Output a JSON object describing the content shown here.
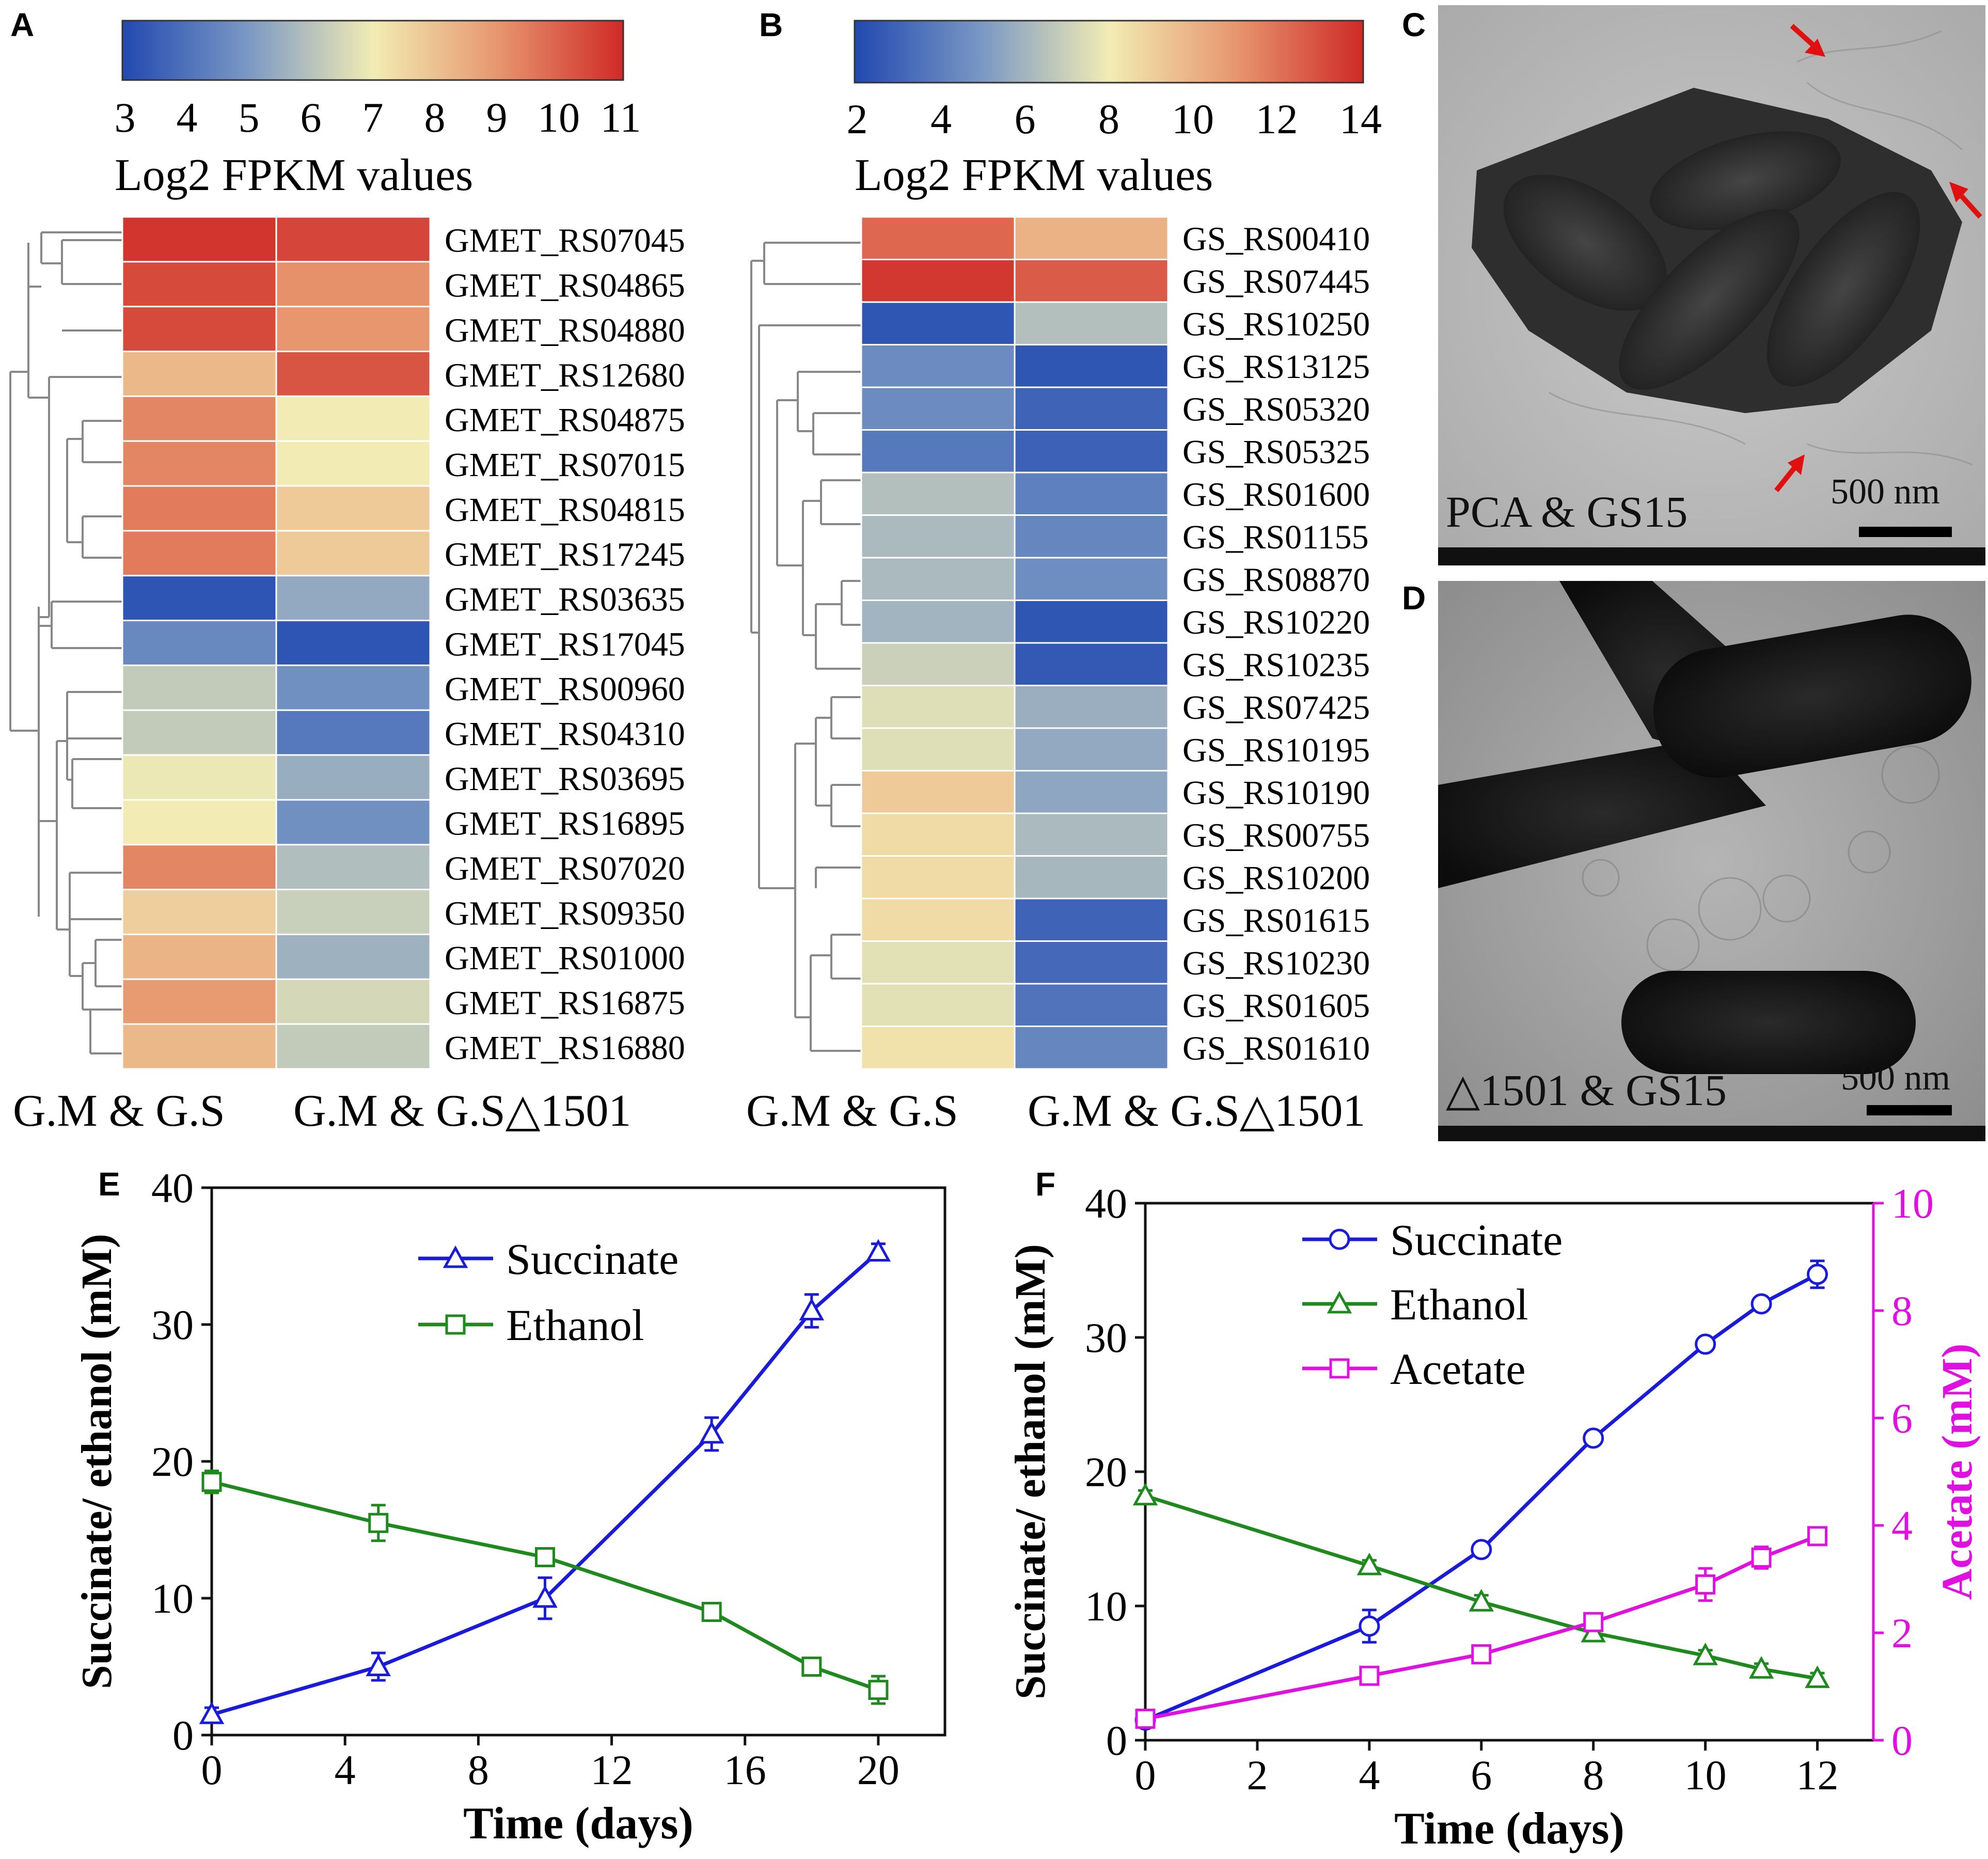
{
  "panel_letters": {
    "a": "A",
    "b": "B",
    "c": "C",
    "d": "D",
    "e": "E",
    "f": "F"
  },
  "panel_A": {
    "colorbar_ticks": [
      "3",
      "4",
      "5",
      "6",
      "7",
      "8",
      "9",
      "10",
      "11"
    ],
    "colorbar_min": 3,
    "colorbar_max": 11,
    "colorbar_label": "Log2  FPKM  values",
    "genes": [
      "GMET_RS07045",
      "GMET_RS04865",
      "GMET_RS04880",
      "GMET_RS12680",
      "GMET_RS04875",
      "GMET_RS07015",
      "GMET_RS04815",
      "GMET_RS17245",
      "GMET_RS03635",
      "GMET_RS17045",
      "GMET_RS00960",
      "GMET_RS04310",
      "GMET_RS03695",
      "GMET_RS16895",
      "GMET_RS07020",
      "GMET_RS09350",
      "GMET_RS01000",
      "GMET_RS16875",
      "GMET_RS16880"
    ],
    "values_col1": [
      10.8,
      10.4,
      10.4,
      8.2,
      9.3,
      9.3,
      9.5,
      9.5,
      3.3,
      4.6,
      6.2,
      6.2,
      6.9,
      7.0,
      9.3,
      7.7,
      8.3,
      8.9,
      8.2
    ],
    "values_col2": [
      10.5,
      9.1,
      9.0,
      10.2,
      7.0,
      7.0,
      7.8,
      7.8,
      5.4,
      3.3,
      4.8,
      4.2,
      5.5,
      4.8,
      5.9,
      6.3,
      5.6,
      6.5,
      6.2
    ],
    "columns": [
      "G.M & G.S",
      "G.M & G.S△1501"
    ]
  },
  "panel_B": {
    "colorbar_ticks": [
      "2",
      "4",
      "6",
      "8",
      "10",
      "12",
      "14"
    ],
    "colorbar_min": 2,
    "colorbar_max": 14,
    "colorbar_label": "Log2  FPKM  values",
    "genes": [
      "GS_RS00410",
      "GS_RS07445",
      "GS_RS10250",
      "GS_RS13125",
      "GS_RS05320",
      "GS_RS05325",
      "GS_RS01600",
      "GS_RS01155",
      "GS_RS08870",
      "GS_RS10220",
      "GS_RS10235",
      "GS_RS07425",
      "GS_RS10195",
      "GS_RS10190",
      "GS_RS00755",
      "GS_RS10200",
      "GS_RS01615",
      "GS_RS10230",
      "GS_RS01605",
      "GS_RS01610"
    ],
    "values_col1": [
      12.3,
      13.6,
      2.5,
      4.5,
      4.5,
      3.8,
      6.4,
      6.2,
      6.2,
      6.0,
      7.0,
      7.5,
      7.5,
      9.2,
      8.6,
      8.6,
      8.6,
      7.6,
      7.6,
      8.4
    ],
    "values_col2": [
      10.0,
      12.6,
      6.4,
      2.5,
      3.0,
      2.9,
      4.1,
      4.3,
      4.6,
      2.5,
      2.6,
      5.8,
      5.6,
      5.5,
      6.2,
      6.1,
      3.0,
      3.2,
      3.6,
      4.3
    ],
    "columns": [
      "G.M & G.S",
      "G.M & G.S△1501"
    ]
  },
  "panel_C": {
    "caption": "PCA & GS15",
    "scale_label": "500 nm"
  },
  "panel_D": {
    "caption": "△1501  & GS15",
    "scale_label": "500 nm"
  },
  "chart_data": [
    {
      "type": "line",
      "panel": "E",
      "xlabel": "Time (days)",
      "ylabel": "Succinate/ ethanol (mM)",
      "xlim": [
        0,
        22
      ],
      "ylim": [
        0,
        40
      ],
      "xticks": [
        0,
        4,
        8,
        12,
        16,
        20
      ],
      "yticks": [
        0,
        10,
        20,
        30,
        40
      ],
      "legend_position": "top-center",
      "series": [
        {
          "name": "Succinate",
          "marker": "triangle",
          "color": "#1a1adb",
          "x": [
            0,
            5,
            10,
            15,
            18,
            20
          ],
          "y": [
            1.5,
            5.0,
            10.0,
            22.0,
            31.0,
            35.3
          ],
          "err": [
            0.5,
            1.0,
            1.5,
            1.2,
            1.2,
            0.6
          ]
        },
        {
          "name": "Ethanol",
          "marker": "square",
          "color": "#1e8a1e",
          "x": [
            0,
            5,
            10,
            15,
            18,
            20
          ],
          "y": [
            18.5,
            15.5,
            13.0,
            9.0,
            5.0,
            3.3
          ],
          "err": [
            0.8,
            1.3,
            0.4,
            0.3,
            0.3,
            1.0
          ]
        }
      ]
    },
    {
      "type": "line",
      "panel": "F",
      "xlabel": "Time (days)",
      "ylabel": "Succinate/ ethanol (mM)",
      "y2label": "Acetate (mM)",
      "xlim": [
        0,
        13
      ],
      "ylim": [
        0,
        40
      ],
      "y2lim": [
        0,
        10
      ],
      "xticks": [
        0,
        2,
        4,
        6,
        8,
        10,
        12
      ],
      "yticks": [
        0,
        10,
        20,
        30,
        40
      ],
      "y2ticks": [
        0,
        2,
        4,
        6,
        8,
        10
      ],
      "legend_position": "top-left",
      "series": [
        {
          "name": "Succinate",
          "marker": "circle",
          "color": "#1a1adb",
          "axis": "left",
          "x": [
            0,
            4,
            6,
            8,
            10,
            11,
            12
          ],
          "y": [
            1.5,
            8.5,
            14.2,
            22.5,
            29.5,
            32.5,
            34.7
          ],
          "err": [
            0.5,
            1.2,
            0.4,
            0.3,
            0.4,
            0.4,
            1.0
          ]
        },
        {
          "name": "Ethanol",
          "marker": "triangle",
          "color": "#1e8a1e",
          "axis": "left",
          "x": [
            0,
            4,
            6,
            8,
            10,
            11,
            12
          ],
          "y": [
            18.2,
            13.0,
            10.3,
            8.0,
            6.3,
            5.3,
            4.6
          ],
          "err": [
            0.4,
            0.4,
            0.5,
            0.4,
            0.4,
            0.4,
            0.4
          ]
        },
        {
          "name": "Acetate",
          "marker": "square",
          "color": "#e010e0",
          "axis": "right",
          "x": [
            0,
            4,
            6,
            8,
            10,
            11,
            12
          ],
          "y": [
            0.4,
            1.2,
            1.6,
            2.2,
            2.9,
            3.4,
            3.8
          ],
          "err": [
            0.05,
            0.08,
            0.1,
            0.1,
            0.3,
            0.2,
            0.1
          ]
        }
      ]
    }
  ]
}
